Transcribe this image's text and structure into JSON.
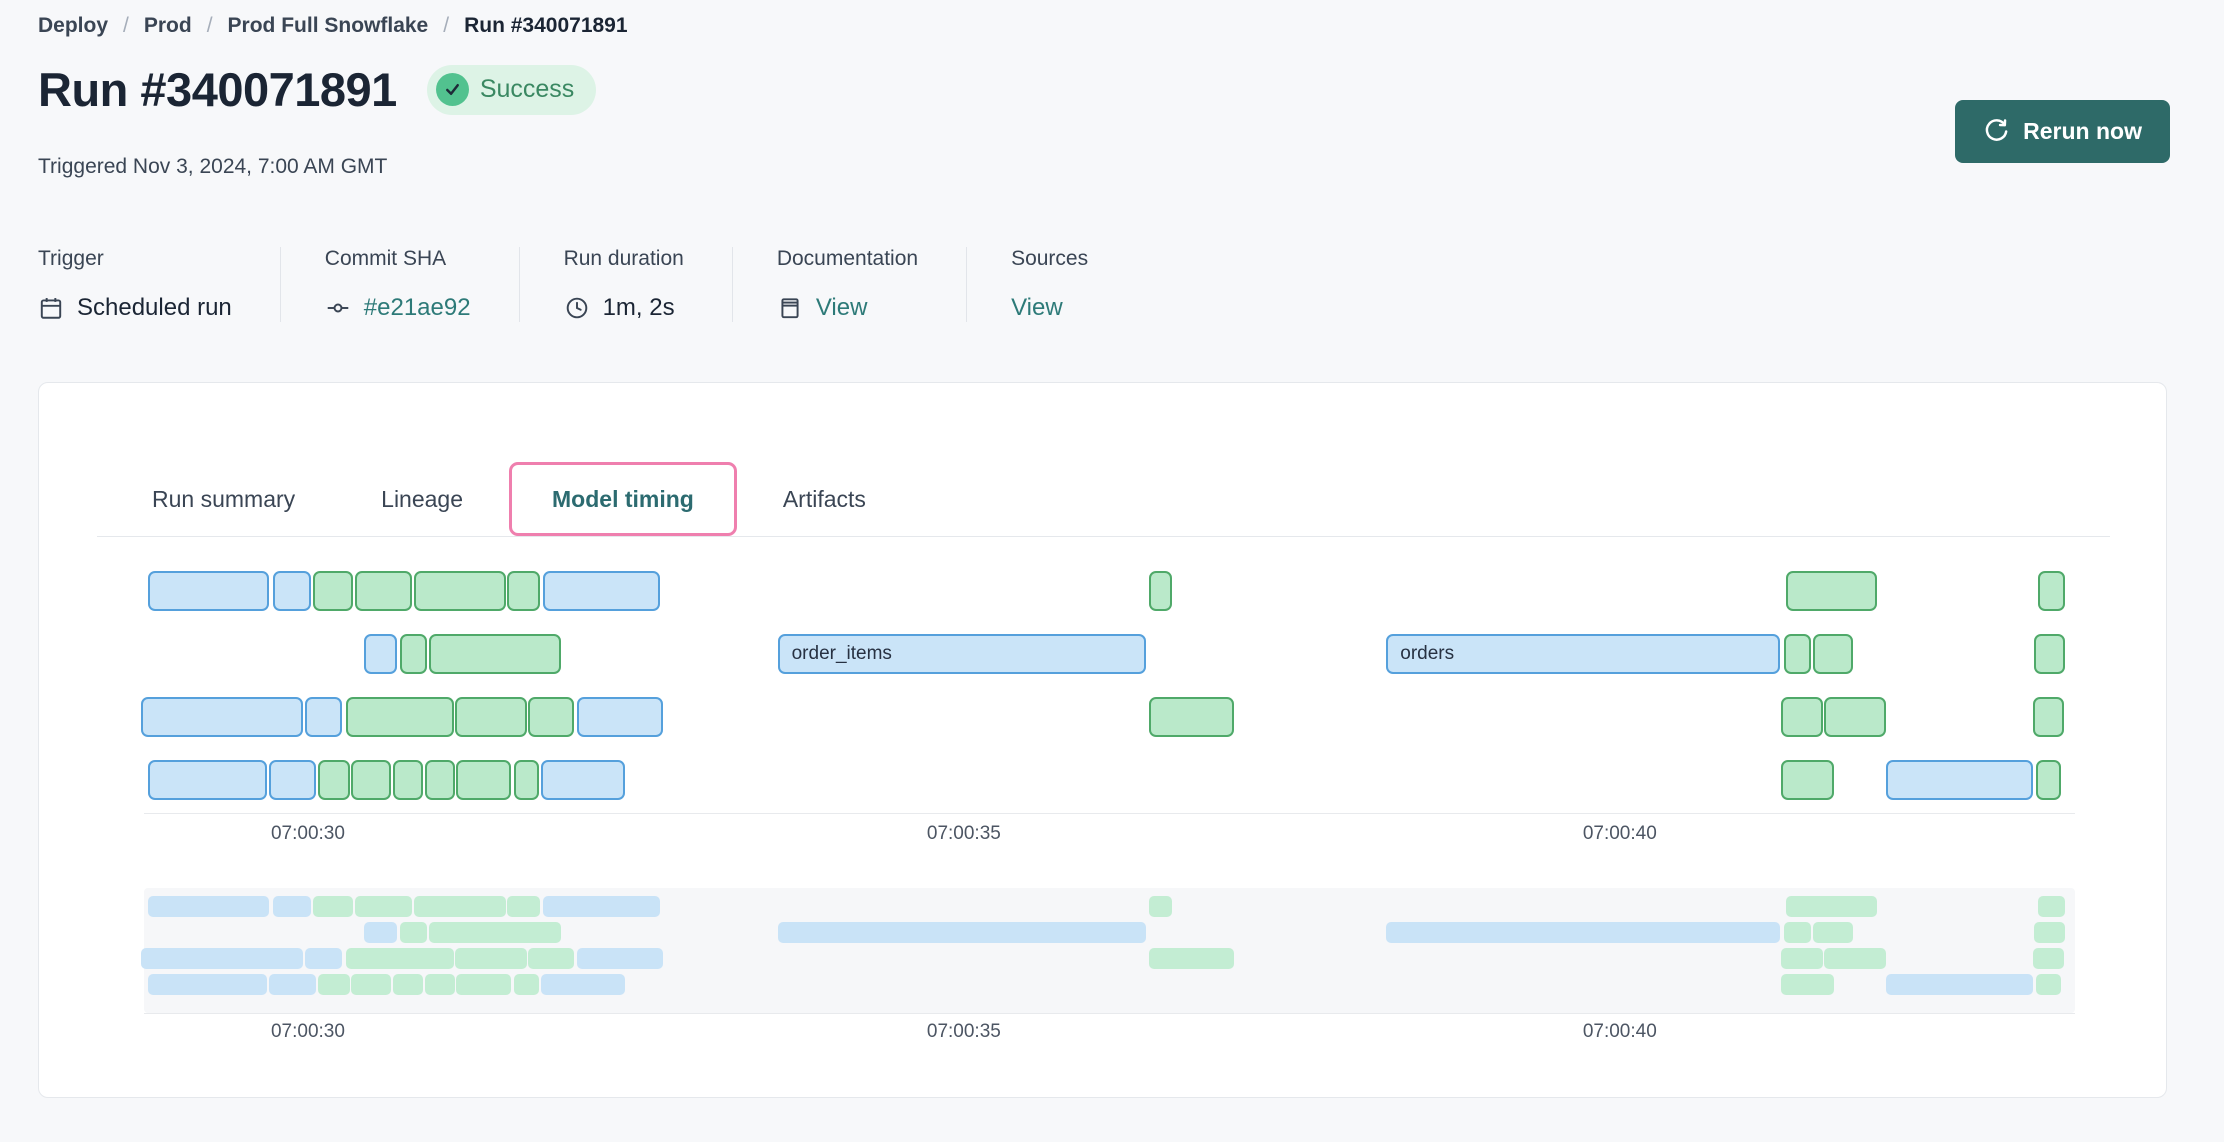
{
  "breadcrumb": {
    "separator": "/",
    "items": [
      "Deploy",
      "Prod",
      "Prod Full Snowflake",
      "Run #340071891"
    ]
  },
  "header": {
    "title": "Run #340071891",
    "status": "Success",
    "triggered": "Triggered Nov 3, 2024, 7:00 AM GMT",
    "rerun_label": "Rerun now"
  },
  "meta": {
    "columns": [
      {
        "label": "Trigger",
        "value": "Scheduled run",
        "icon": "calendar-icon",
        "is_link": false
      },
      {
        "label": "Commit SHA",
        "value": "#e21ae92",
        "icon": "commit-icon",
        "is_link": true
      },
      {
        "label": "Run duration",
        "value": "1m, 2s",
        "icon": "clock-icon",
        "is_link": false
      },
      {
        "label": "Documentation",
        "value": "View",
        "icon": "docs-icon",
        "is_link": true
      },
      {
        "label": "Sources",
        "value": "View",
        "icon": null,
        "is_link": true
      }
    ]
  },
  "tabs": [
    {
      "label": "Run summary",
      "active": false
    },
    {
      "label": "Lineage",
      "active": false
    },
    {
      "label": "Model timing",
      "active": true
    },
    {
      "label": "Artifacts",
      "active": false
    }
  ],
  "colors": {
    "page_bg": "#f7f8fa",
    "link_teal": "#2d7a78",
    "tab_active_teal": "#2c6b70",
    "button_teal": "#2e6a68",
    "highlight_pink": "#ef7fae",
    "badge_bg": "#ddf3e6",
    "badge_circle": "#52c28f",
    "badge_text": "#3a8862",
    "bar_blue_fill": "#cae4f8",
    "bar_blue_border": "#55a0dc",
    "bar_green_fill": "#bae9ca",
    "bar_green_border": "#4fa969",
    "mini_bar_blue": "#c9e3f7",
    "mini_bar_green": "#c3edd3"
  },
  "chart_data": {
    "type": "gantt",
    "description": "Model timing gantt chart; times are seconds after 07:00:00 GMT",
    "time_axis": {
      "min": 28.75,
      "max": 43.47,
      "ticks": [
        {
          "time": 30,
          "label": "07:00:30"
        },
        {
          "time": 35,
          "label": "07:00:35"
        },
        {
          "time": 40,
          "label": "07:00:40"
        }
      ]
    },
    "lanes": [
      {
        "bars": [
          {
            "start": 28.78,
            "end": 29.7,
            "color": "blue"
          },
          {
            "start": 29.73,
            "end": 30.02,
            "color": "blue"
          },
          {
            "start": 30.04,
            "end": 30.34,
            "color": "green"
          },
          {
            "start": 30.36,
            "end": 30.79,
            "color": "green"
          },
          {
            "start": 30.81,
            "end": 31.51,
            "color": "green"
          },
          {
            "start": 31.52,
            "end": 31.77,
            "color": "green"
          },
          {
            "start": 31.79,
            "end": 32.68,
            "color": "blue"
          },
          {
            "start": 36.41,
            "end": 36.59,
            "color": "green"
          },
          {
            "start": 41.27,
            "end": 41.96,
            "color": "green"
          },
          {
            "start": 43.19,
            "end": 43.39,
            "color": "green"
          }
        ]
      },
      {
        "bars": [
          {
            "start": 30.43,
            "end": 30.68,
            "color": "blue"
          },
          {
            "start": 30.7,
            "end": 30.91,
            "color": "green"
          },
          {
            "start": 30.92,
            "end": 31.93,
            "color": "green"
          },
          {
            "start": 33.58,
            "end": 36.39,
            "color": "blue",
            "label": "order_items"
          },
          {
            "start": 38.22,
            "end": 41.22,
            "color": "blue",
            "label": "orders"
          },
          {
            "start": 41.25,
            "end": 41.46,
            "color": "green"
          },
          {
            "start": 41.47,
            "end": 41.78,
            "color": "green"
          },
          {
            "start": 43.16,
            "end": 43.39,
            "color": "green"
          }
        ]
      },
      {
        "bars": [
          {
            "start": 28.73,
            "end": 29.96,
            "color": "blue"
          },
          {
            "start": 29.98,
            "end": 30.26,
            "color": "blue"
          },
          {
            "start": 30.29,
            "end": 31.11,
            "color": "green"
          },
          {
            "start": 31.12,
            "end": 31.67,
            "color": "green"
          },
          {
            "start": 31.68,
            "end": 32.03,
            "color": "green"
          },
          {
            "start": 32.05,
            "end": 32.71,
            "color": "blue"
          },
          {
            "start": 36.41,
            "end": 37.06,
            "color": "green"
          },
          {
            "start": 41.23,
            "end": 41.55,
            "color": "green"
          },
          {
            "start": 41.56,
            "end": 42.03,
            "color": "green"
          },
          {
            "start": 43.15,
            "end": 43.39,
            "color": "green"
          }
        ]
      },
      {
        "bars": [
          {
            "start": 28.78,
            "end": 29.69,
            "color": "blue"
          },
          {
            "start": 29.7,
            "end": 30.06,
            "color": "blue"
          },
          {
            "start": 30.08,
            "end": 30.32,
            "color": "green"
          },
          {
            "start": 30.33,
            "end": 30.63,
            "color": "green"
          },
          {
            "start": 30.65,
            "end": 30.88,
            "color": "green"
          },
          {
            "start": 30.89,
            "end": 31.12,
            "color": "green"
          },
          {
            "start": 31.13,
            "end": 31.55,
            "color": "green"
          },
          {
            "start": 31.57,
            "end": 31.76,
            "color": "green"
          },
          {
            "start": 31.78,
            "end": 32.42,
            "color": "blue"
          },
          {
            "start": 41.23,
            "end": 41.63,
            "color": "green"
          },
          {
            "start": 42.03,
            "end": 43.15,
            "color": "blue"
          },
          {
            "start": 43.17,
            "end": 43.36,
            "color": "green"
          }
        ]
      }
    ]
  }
}
